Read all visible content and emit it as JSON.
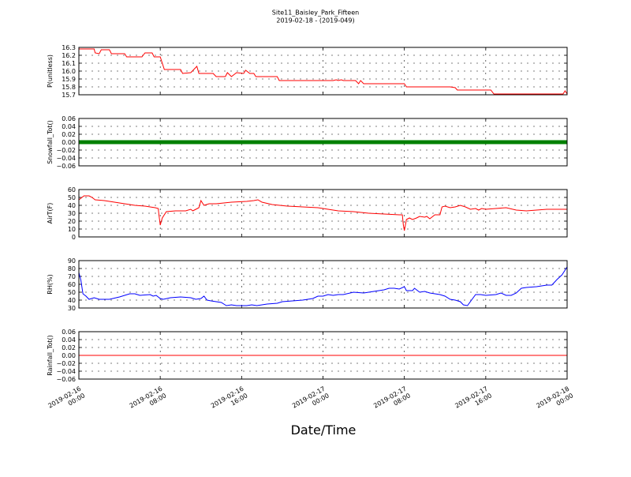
{
  "chart_data": {
    "type": "line",
    "title": "Site11_Baisley_Park_Fifteen",
    "subtitle": "2019-02-18 - (2019-049)",
    "xlabel": "Date/Time",
    "x_range": [
      "2019-02-16 00:00",
      "2019-02-18 00:00"
    ],
    "x_ticks": [
      {
        "value": 0,
        "line1": "2019-02-16",
        "line2": "00:00"
      },
      {
        "value": 8,
        "line1": "2019-02-16",
        "line2": "08:00"
      },
      {
        "value": 16,
        "line1": "2019-02-16",
        "line2": "16:00"
      },
      {
        "value": 24,
        "line1": "2019-02-17",
        "line2": "00:00"
      },
      {
        "value": 32,
        "line1": "2019-02-17",
        "line2": "08:00"
      },
      {
        "value": 40,
        "line1": "2019-02-17",
        "line2": "16:00"
      },
      {
        "value": 48,
        "line1": "2019-02-18",
        "line2": "00:00"
      }
    ],
    "grid": true,
    "panels": [
      {
        "ylabel": "P(unitless)",
        "ylim": [
          15.7,
          16.3
        ],
        "yticks": [
          "15.7",
          "15.8",
          "15.9",
          "16.0",
          "16.1",
          "16.2",
          "16.3"
        ],
        "series": [
          {
            "color": "#ff0000",
            "style": "line",
            "points": [
              [
                0,
                16.28
              ],
              [
                1.5,
                16.28
              ],
              [
                1.6,
                16.23
              ],
              [
                2.0,
                16.22
              ],
              [
                2.2,
                16.27
              ],
              [
                3.0,
                16.27
              ],
              [
                3.2,
                16.22
              ],
              [
                4.5,
                16.22
              ],
              [
                4.7,
                16.18
              ],
              [
                6.2,
                16.18
              ],
              [
                6.5,
                16.23
              ],
              [
                7.2,
                16.23
              ],
              [
                7.4,
                16.18
              ],
              [
                8.0,
                16.18
              ],
              [
                8.4,
                16.02
              ],
              [
                10.0,
                16.02
              ],
              [
                10.2,
                15.97
              ],
              [
                11.0,
                15.98
              ],
              [
                11.6,
                16.06
              ],
              [
                11.8,
                15.97
              ],
              [
                13.2,
                15.97
              ],
              [
                13.5,
                15.93
              ],
              [
                14.4,
                15.93
              ],
              [
                14.6,
                15.98
              ],
              [
                15.0,
                15.93
              ],
              [
                15.5,
                15.98
              ],
              [
                16.2,
                15.97
              ],
              [
                16.4,
                16.01
              ],
              [
                16.8,
                15.97
              ],
              [
                17.2,
                15.97
              ],
              [
                17.4,
                15.93
              ],
              [
                19.5,
                15.93
              ],
              [
                19.7,
                15.88
              ],
              [
                25.0,
                15.88
              ],
              [
                25.3,
                15.89
              ],
              [
                25.5,
                15.88
              ],
              [
                25.8,
                15.89
              ],
              [
                26.0,
                15.88
              ],
              [
                27.2,
                15.88
              ],
              [
                27.5,
                15.84
              ],
              [
                27.7,
                15.88
              ],
              [
                28.0,
                15.84
              ],
              [
                31.5,
                15.84
              ],
              [
                32.0,
                15.84
              ],
              [
                32.2,
                15.8
              ],
              [
                36.5,
                15.8
              ],
              [
                37.0,
                15.79
              ],
              [
                37.2,
                15.76
              ],
              [
                40.5,
                15.76
              ],
              [
                40.8,
                15.71
              ],
              [
                47.6,
                15.71
              ],
              [
                47.8,
                15.75
              ],
              [
                48.0,
                15.71
              ]
            ]
          }
        ]
      },
      {
        "ylabel": "Snowfall_Tot()",
        "ylim": [
          -0.06,
          0.06
        ],
        "yticks": [
          "−0.06",
          "−0.04",
          "−0.02",
          "0.00",
          "0.02",
          "0.04",
          "0.06"
        ],
        "series": [
          {
            "color": "#008000",
            "style": "dense-markers",
            "points": [
              [
                0,
                0
              ],
              [
                48,
                0
              ]
            ]
          }
        ]
      },
      {
        "ylabel": "AirT(F)",
        "ylim": [
          0,
          60
        ],
        "yticks": [
          "0",
          "10",
          "20",
          "30",
          "40",
          "50",
          "60"
        ],
        "series": [
          {
            "color": "#ff0000",
            "style": "line",
            "points": [
              [
                0,
                47
              ],
              [
                0.5,
                52
              ],
              [
                1.0,
                52
              ],
              [
                1.3,
                50
              ],
              [
                1.6,
                47
              ],
              [
                2.5,
                46
              ],
              [
                3.5,
                44
              ],
              [
                4.5,
                42
              ],
              [
                5.5,
                40
              ],
              [
                6.5,
                39
              ],
              [
                7.0,
                38
              ],
              [
                7.5,
                37
              ],
              [
                7.8,
                36
              ],
              [
                7.9,
                25
              ],
              [
                8.0,
                15
              ],
              [
                8.2,
                24
              ],
              [
                8.6,
                32
              ],
              [
                9.5,
                33
              ],
              [
                10.5,
                33
              ],
              [
                11.0,
                35
              ],
              [
                11.2,
                33
              ],
              [
                11.5,
                35
              ],
              [
                11.8,
                37
              ],
              [
                12.0,
                46
              ],
              [
                12.3,
                40
              ],
              [
                12.8,
                42
              ],
              [
                13.5,
                42
              ],
              [
                15.0,
                44
              ],
              [
                16.5,
                45
              ],
              [
                17.2,
                46
              ],
              [
                17.6,
                47
              ],
              [
                18.0,
                44
              ],
              [
                19.0,
                41
              ],
              [
                20.5,
                39
              ],
              [
                22.0,
                38
              ],
              [
                23.5,
                37
              ],
              [
                24.5,
                35
              ],
              [
                25.5,
                33
              ],
              [
                27.0,
                32
              ],
              [
                28.5,
                30
              ],
              [
                30.0,
                29
              ],
              [
                31.5,
                28
              ],
              [
                31.8,
                28
              ],
              [
                31.9,
                15
              ],
              [
                32.0,
                8
              ],
              [
                32.2,
                22
              ],
              [
                32.5,
                24
              ],
              [
                32.8,
                22
              ],
              [
                33.2,
                24
              ],
              [
                33.5,
                26
              ],
              [
                34.0,
                25
              ],
              [
                34.2,
                26
              ],
              [
                34.5,
                23
              ],
              [
                35.0,
                28
              ],
              [
                35.5,
                28
              ],
              [
                35.7,
                38
              ],
              [
                36.0,
                39
              ],
              [
                36.5,
                37
              ],
              [
                37.0,
                38
              ],
              [
                37.5,
                40
              ],
              [
                38.0,
                38
              ],
              [
                38.5,
                35
              ],
              [
                39.0,
                36
              ],
              [
                39.3,
                34
              ],
              [
                39.6,
                36
              ],
              [
                40.0,
                35
              ],
              [
                41.0,
                36
              ],
              [
                42.0,
                37
              ],
              [
                43.0,
                34
              ],
              [
                44.0,
                33
              ],
              [
                45.0,
                34
              ],
              [
                46.0,
                35
              ],
              [
                47.0,
                35
              ],
              [
                48.0,
                35
              ]
            ]
          }
        ]
      },
      {
        "ylabel": "RH(%)",
        "ylim": [
          30,
          90
        ],
        "yticks": [
          "30",
          "40",
          "50",
          "60",
          "70",
          "80",
          "90"
        ],
        "series": [
          {
            "color": "#0000ff",
            "style": "line",
            "points": [
              [
                0,
                75
              ],
              [
                0.2,
                65
              ],
              [
                0.4,
                48
              ],
              [
                0.7,
                45
              ],
              [
                1.0,
                41
              ],
              [
                1.5,
                43
              ],
              [
                2.0,
                41
              ],
              [
                3.0,
                41
              ],
              [
                4.0,
                44
              ],
              [
                5.0,
                48
              ],
              [
                5.5,
                48
              ],
              [
                6.0,
                46
              ],
              [
                7.0,
                47
              ],
              [
                7.3,
                45
              ],
              [
                7.6,
                46
              ],
              [
                8.0,
                42
              ],
              [
                8.3,
                41
              ],
              [
                9.0,
                43
              ],
              [
                10.0,
                44
              ],
              [
                11.0,
                43
              ],
              [
                11.5,
                41
              ],
              [
                12.0,
                42
              ],
              [
                12.3,
                45
              ],
              [
                12.6,
                40
              ],
              [
                13.0,
                39
              ],
              [
                14.0,
                37
              ],
              [
                14.5,
                33
              ],
              [
                15.0,
                34
              ],
              [
                15.5,
                33
              ],
              [
                16.5,
                33
              ],
              [
                17.0,
                34
              ],
              [
                17.5,
                33
              ],
              [
                18.5,
                35
              ],
              [
                19.5,
                36
              ],
              [
                20.0,
                38
              ],
              [
                21.0,
                39
              ],
              [
                22.0,
                40
              ],
              [
                23.0,
                42
              ],
              [
                23.5,
                45
              ],
              [
                24.0,
                45
              ],
              [
                24.5,
                47
              ],
              [
                25.0,
                46
              ],
              [
                25.5,
                47
              ],
              [
                26.0,
                47
              ],
              [
                27.0,
                50
              ],
              [
                28.0,
                49
              ],
              [
                29.0,
                51
              ],
              [
                30.0,
                53
              ],
              [
                30.5,
                55
              ],
              [
                31.0,
                55
              ],
              [
                31.5,
                54
              ],
              [
                32.0,
                57
              ],
              [
                32.2,
                52
              ],
              [
                32.8,
                52
              ],
              [
                33.0,
                55
              ],
              [
                33.5,
                50
              ],
              [
                34.0,
                51
              ],
              [
                34.5,
                49
              ],
              [
                35.5,
                47
              ],
              [
                36.0,
                45
              ],
              [
                36.5,
                41
              ],
              [
                37.0,
                40
              ],
              [
                37.5,
                38
              ],
              [
                37.8,
                34
              ],
              [
                38.2,
                33
              ],
              [
                38.6,
                40
              ],
              [
                39.0,
                47
              ],
              [
                39.5,
                47
              ],
              [
                40.0,
                46
              ],
              [
                41.0,
                47
              ],
              [
                41.5,
                49
              ],
              [
                42.0,
                46
              ],
              [
                42.5,
                46
              ],
              [
                43.0,
                49
              ],
              [
                43.5,
                55
              ],
              [
                44.0,
                56
              ],
              [
                45.0,
                57
              ],
              [
                46.0,
                59
              ],
              [
                46.5,
                59
              ],
              [
                47.0,
                66
              ],
              [
                47.5,
                72
              ],
              [
                48.0,
                82
              ]
            ]
          }
        ]
      },
      {
        "ylabel": "Rainfall_Tot()",
        "ylim": [
          -0.06,
          0.06
        ],
        "yticks": [
          "−0.06",
          "−0.04",
          "−0.02",
          "0.00",
          "0.02",
          "0.04",
          "0.06"
        ],
        "series": [
          {
            "color": "#ff0000",
            "style": "line",
            "points": [
              [
                0,
                0
              ],
              [
                48,
                0
              ]
            ]
          }
        ]
      }
    ]
  }
}
